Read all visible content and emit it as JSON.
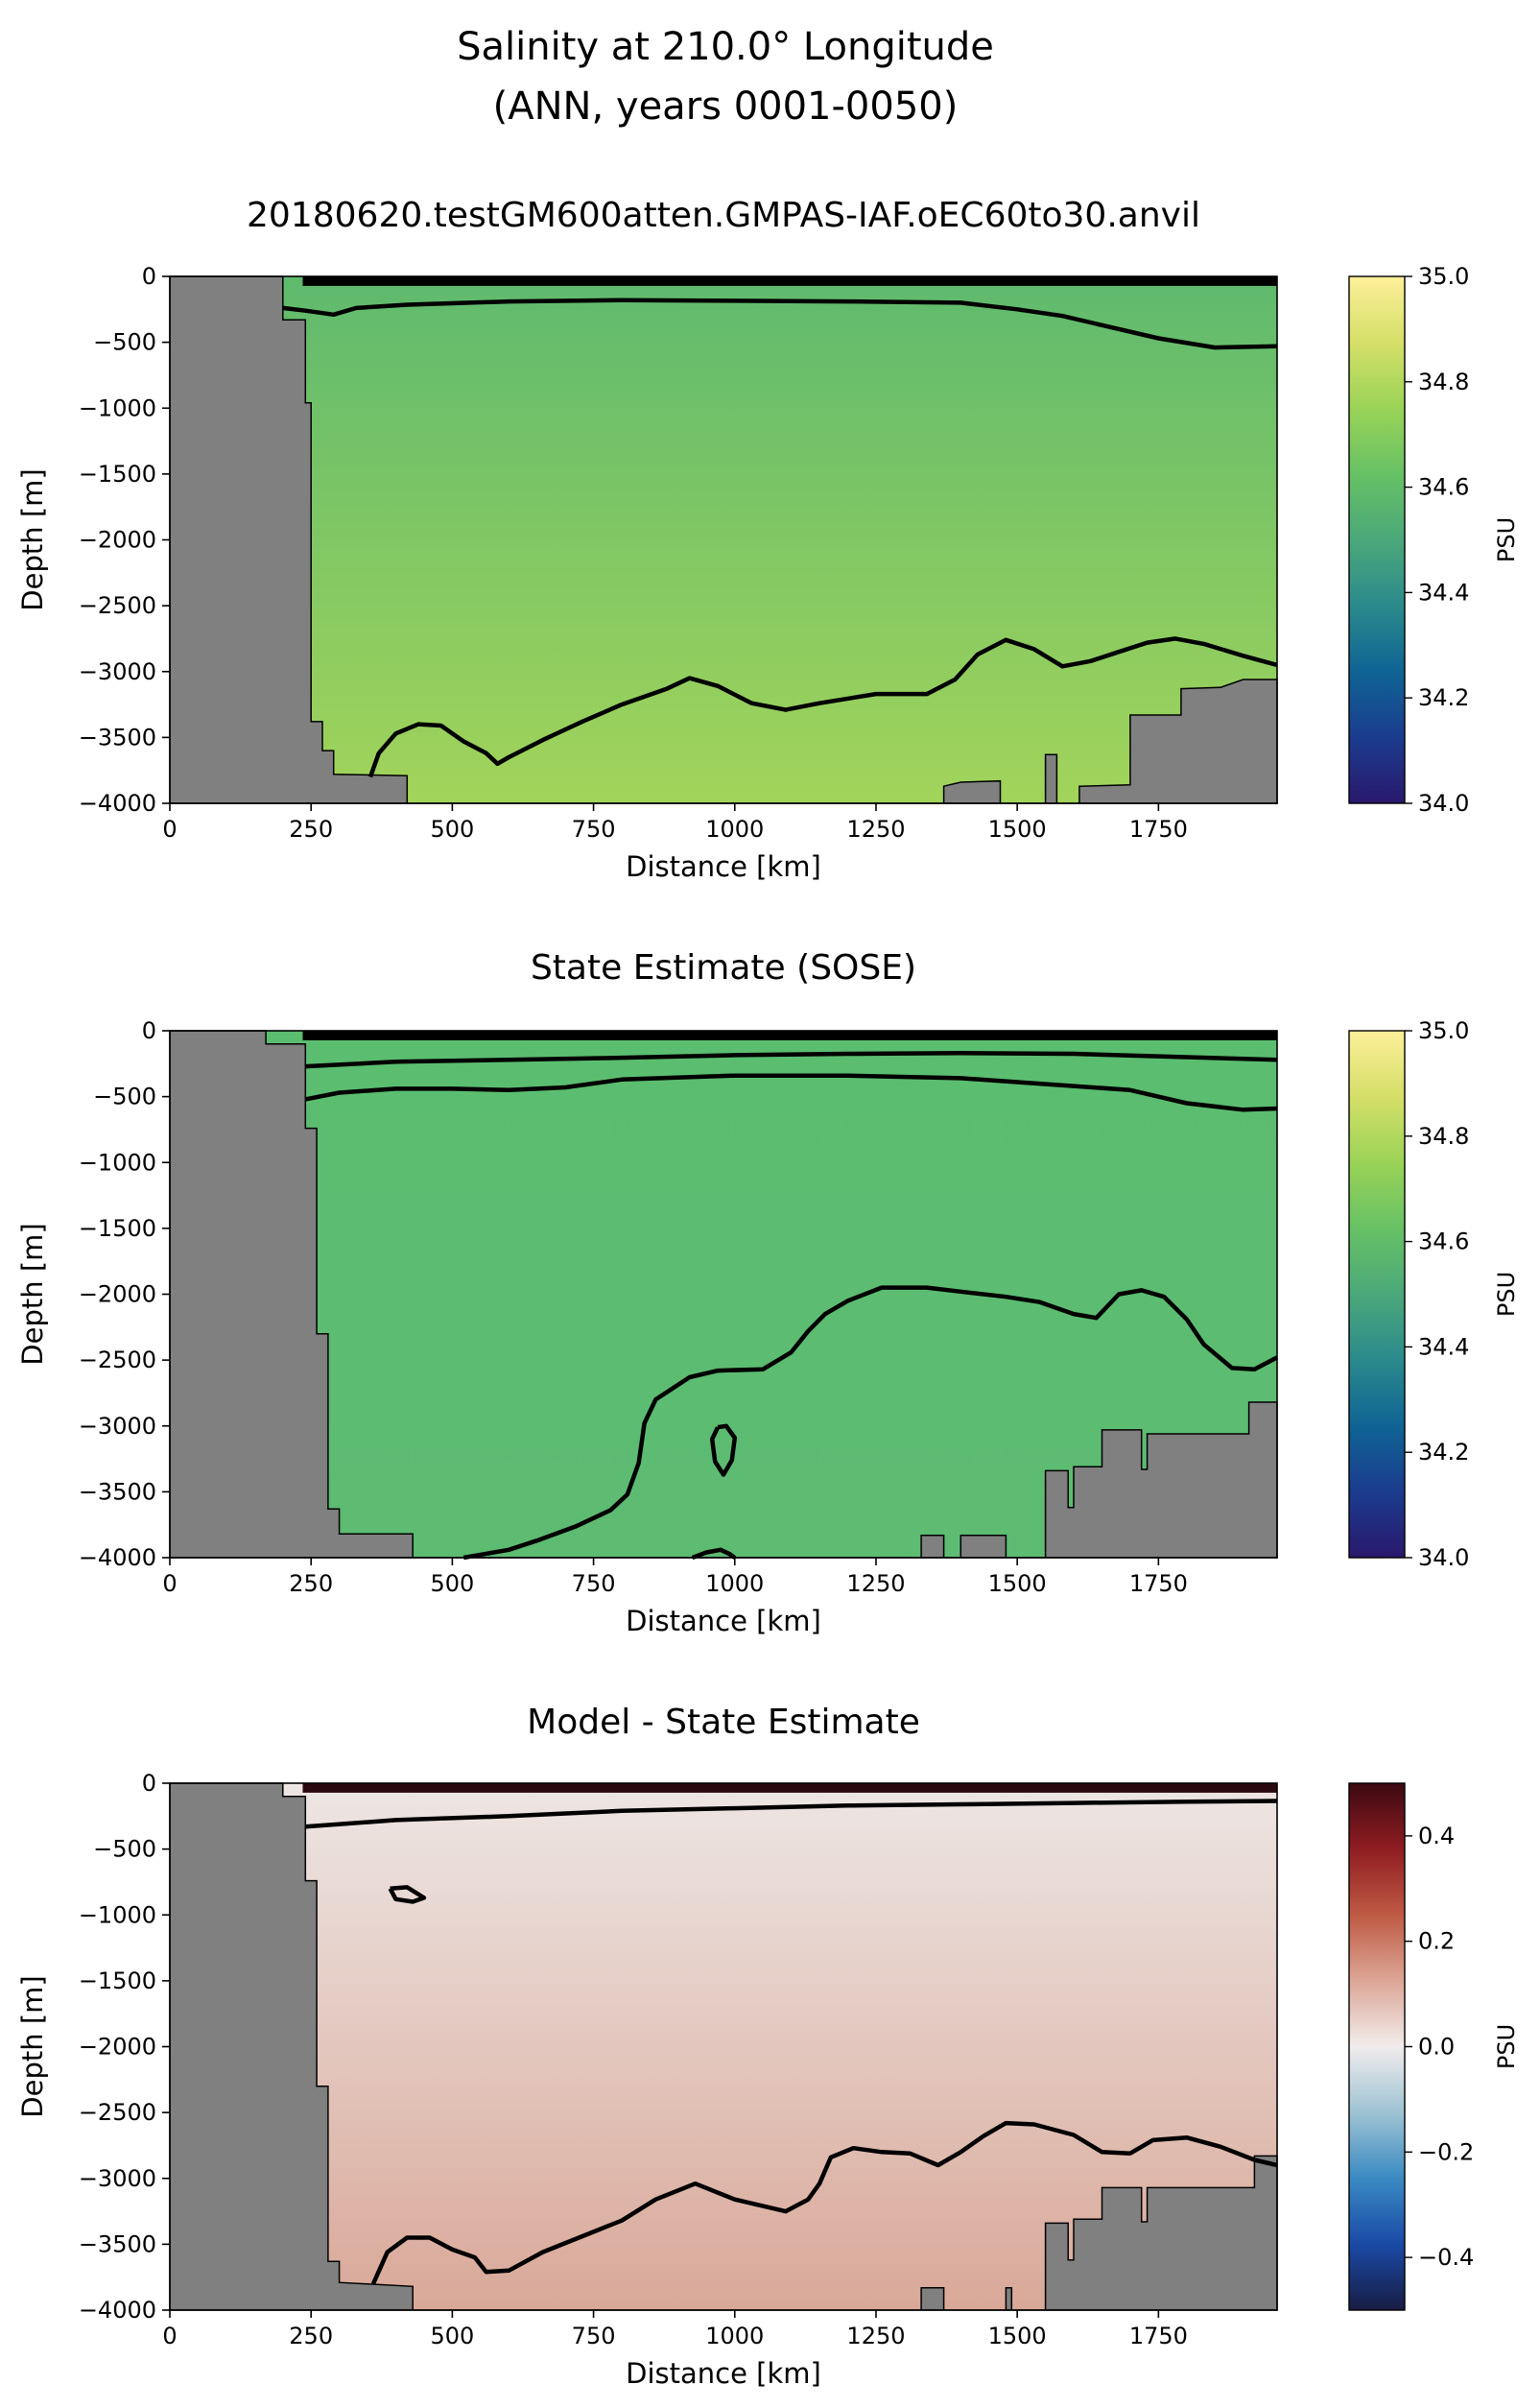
{
  "figure": {
    "title_line1": "Salinity at 210.0° Longitude",
    "title_line2": "(ANN, years 0001-0050)"
  },
  "chart_data": [
    {
      "type": "heatmap",
      "id": "model",
      "title": "20180620.testGM600atten.GMPAS-IAF.oEC60to30.anvil",
      "xlabel": "Distance [km]",
      "ylabel": "Depth [m]",
      "xlim": [
        0,
        1960
      ],
      "ylim": [
        -4000,
        0
      ],
      "xticks": [
        0,
        250,
        500,
        750,
        1000,
        1250,
        1500,
        1750
      ],
      "yticks": [
        0,
        -500,
        -1000,
        -1500,
        -2000,
        -2500,
        -3000,
        -3500,
        -4000
      ],
      "colorbar": {
        "label": "PSU",
        "range": [
          34.0,
          35.0
        ],
        "ticks": [
          35.0,
          34.8,
          34.6,
          34.4,
          34.2,
          34.0
        ],
        "colormap": "haline"
      },
      "field_colors": {
        "top": "#5fba6e",
        "bottom": "#a2d45a",
        "surface": "#000000"
      },
      "bathymetry": [
        [
          0,
          0
        ],
        [
          200,
          0
        ],
        [
          200,
          -330
        ],
        [
          240,
          -330
        ],
        [
          240,
          -960
        ],
        [
          250,
          -960
        ],
        [
          250,
          -3380
        ],
        [
          270,
          -3380
        ],
        [
          270,
          -3600
        ],
        [
          290,
          -3600
        ],
        [
          290,
          -3780
        ],
        [
          420,
          -3790
        ],
        [
          420,
          -4000
        ],
        [
          1370,
          -4000
        ],
        [
          1370,
          -3870
        ],
        [
          1400,
          -3840
        ],
        [
          1470,
          -3830
        ],
        [
          1470,
          -4000
        ],
        [
          1550,
          -4000
        ],
        [
          1550,
          -3630
        ],
        [
          1570,
          -3630
        ],
        [
          1570,
          -4000
        ],
        [
          1610,
          -4000
        ],
        [
          1610,
          -3870
        ],
        [
          1700,
          -3860
        ],
        [
          1700,
          -3330
        ],
        [
          1790,
          -3330
        ],
        [
          1790,
          -3130
        ],
        [
          1860,
          -3120
        ],
        [
          1900,
          -3060
        ],
        [
          1960,
          -3060
        ],
        [
          1960,
          -4000
        ],
        [
          0,
          -4000
        ]
      ],
      "contours": [
        [
          [
            200,
            -240
          ],
          [
            240,
            -260
          ],
          [
            290,
            -290
          ],
          [
            330,
            -240
          ],
          [
            420,
            -215
          ],
          [
            600,
            -190
          ],
          [
            800,
            -180
          ],
          [
            1000,
            -185
          ],
          [
            1200,
            -190
          ],
          [
            1400,
            -200
          ],
          [
            1500,
            -250
          ],
          [
            1580,
            -300
          ],
          [
            1650,
            -370
          ],
          [
            1750,
            -470
          ],
          [
            1850,
            -540
          ],
          [
            1960,
            -530
          ]
        ],
        [
          [
            355,
            -3800
          ],
          [
            370,
            -3620
          ],
          [
            400,
            -3470
          ],
          [
            440,
            -3400
          ],
          [
            480,
            -3410
          ],
          [
            520,
            -3530
          ],
          [
            560,
            -3620
          ],
          [
            580,
            -3700
          ],
          [
            600,
            -3650
          ],
          [
            660,
            -3520
          ],
          [
            730,
            -3380
          ],
          [
            800,
            -3250
          ],
          [
            880,
            -3130
          ],
          [
            920,
            -3050
          ],
          [
            970,
            -3110
          ],
          [
            1030,
            -3240
          ],
          [
            1090,
            -3290
          ],
          [
            1150,
            -3240
          ],
          [
            1250,
            -3170
          ],
          [
            1340,
            -3170
          ],
          [
            1390,
            -3060
          ],
          [
            1430,
            -2870
          ],
          [
            1480,
            -2760
          ],
          [
            1530,
            -2830
          ],
          [
            1580,
            -2960
          ],
          [
            1630,
            -2920
          ],
          [
            1680,
            -2850
          ],
          [
            1730,
            -2780
          ],
          [
            1780,
            -2750
          ],
          [
            1830,
            -2790
          ],
          [
            1900,
            -2880
          ],
          [
            1960,
            -2950
          ]
        ]
      ]
    },
    {
      "type": "heatmap",
      "id": "sose",
      "title": "State Estimate (SOSE)",
      "xlabel": "Distance [km]",
      "ylabel": "Depth [m]",
      "xlim": [
        0,
        1960
      ],
      "ylim": [
        -4000,
        0
      ],
      "xticks": [
        0,
        250,
        500,
        750,
        1000,
        1250,
        1500,
        1750
      ],
      "yticks": [
        0,
        -500,
        -1000,
        -1500,
        -2000,
        -2500,
        -3000,
        -3500,
        -4000
      ],
      "colorbar": {
        "label": "PSU",
        "range": [
          34.0,
          35.0
        ],
        "ticks": [
          35.0,
          34.8,
          34.6,
          34.4,
          34.2,
          34.0
        ],
        "colormap": "haline"
      },
      "field_colors": {
        "top": "#5bbd70",
        "bottom": "#5dbb72",
        "surface": "#000000"
      },
      "bathymetry": [
        [
          0,
          0
        ],
        [
          170,
          0
        ],
        [
          170,
          -100
        ],
        [
          240,
          -100
        ],
        [
          240,
          -740
        ],
        [
          260,
          -740
        ],
        [
          260,
          -2300
        ],
        [
          280,
          -2300
        ],
        [
          280,
          -3630
        ],
        [
          300,
          -3630
        ],
        [
          300,
          -3820
        ],
        [
          430,
          -3820
        ],
        [
          430,
          -4000
        ],
        [
          1330,
          -4000
        ],
        [
          1330,
          -3830
        ],
        [
          1370,
          -3830
        ],
        [
          1370,
          -4000
        ],
        [
          1400,
          -4000
        ],
        [
          1400,
          -3830
        ],
        [
          1480,
          -3830
        ],
        [
          1480,
          -4000
        ],
        [
          1550,
          -4000
        ],
        [
          1550,
          -3340
        ],
        [
          1590,
          -3340
        ],
        [
          1590,
          -3620
        ],
        [
          1600,
          -3620
        ],
        [
          1600,
          -3310
        ],
        [
          1650,
          -3310
        ],
        [
          1650,
          -3030
        ],
        [
          1720,
          -3030
        ],
        [
          1720,
          -3330
        ],
        [
          1730,
          -3330
        ],
        [
          1730,
          -3060
        ],
        [
          1910,
          -3060
        ],
        [
          1910,
          -2820
        ],
        [
          1960,
          -2820
        ],
        [
          1960,
          -4000
        ],
        [
          0,
          -4000
        ]
      ],
      "contours": [
        [
          [
            240,
            -270
          ],
          [
            400,
            -235
          ],
          [
            600,
            -220
          ],
          [
            800,
            -205
          ],
          [
            1000,
            -185
          ],
          [
            1200,
            -175
          ],
          [
            1400,
            -170
          ],
          [
            1600,
            -175
          ],
          [
            1800,
            -200
          ],
          [
            1960,
            -220
          ]
        ],
        [
          [
            240,
            -520
          ],
          [
            300,
            -470
          ],
          [
            400,
            -440
          ],
          [
            500,
            -440
          ],
          [
            600,
            -450
          ],
          [
            700,
            -430
          ],
          [
            800,
            -370
          ],
          [
            1000,
            -340
          ],
          [
            1200,
            -340
          ],
          [
            1400,
            -360
          ],
          [
            1500,
            -390
          ],
          [
            1600,
            -420
          ],
          [
            1700,
            -450
          ],
          [
            1800,
            -550
          ],
          [
            1900,
            -600
          ],
          [
            1960,
            -590
          ]
        ],
        [
          [
            520,
            -4000
          ],
          [
            600,
            -3940
          ],
          [
            650,
            -3870
          ],
          [
            720,
            -3760
          ],
          [
            780,
            -3640
          ],
          [
            810,
            -3520
          ],
          [
            830,
            -3280
          ],
          [
            840,
            -2980
          ],
          [
            860,
            -2800
          ],
          [
            920,
            -2630
          ],
          [
            970,
            -2580
          ],
          [
            1050,
            -2570
          ],
          [
            1100,
            -2440
          ],
          [
            1130,
            -2280
          ],
          [
            1160,
            -2150
          ],
          [
            1200,
            -2050
          ],
          [
            1260,
            -1950
          ],
          [
            1340,
            -1950
          ],
          [
            1400,
            -1980
          ],
          [
            1480,
            -2020
          ],
          [
            1540,
            -2060
          ],
          [
            1600,
            -2150
          ],
          [
            1640,
            -2180
          ],
          [
            1680,
            -2000
          ],
          [
            1720,
            -1970
          ],
          [
            1760,
            -2020
          ],
          [
            1800,
            -2190
          ],
          [
            1830,
            -2380
          ],
          [
            1880,
            -2560
          ],
          [
            1920,
            -2570
          ],
          [
            1960,
            -2480
          ]
        ],
        [
          [
            970,
            -3010
          ],
          [
            985,
            -3000
          ],
          [
            1000,
            -3090
          ],
          [
            995,
            -3260
          ],
          [
            980,
            -3370
          ],
          [
            965,
            -3270
          ],
          [
            960,
            -3100
          ],
          [
            970,
            -3010
          ]
        ],
        [
          [
            925,
            -4000
          ],
          [
            950,
            -3960
          ],
          [
            975,
            -3940
          ],
          [
            990,
            -3970
          ],
          [
            1000,
            -4000
          ]
        ]
      ]
    },
    {
      "type": "heatmap",
      "id": "difference",
      "title": "Model - State Estimate",
      "xlabel": "Distance [km]",
      "ylabel": "Depth [m]",
      "xlim": [
        0,
        1960
      ],
      "ylim": [
        -4000,
        0
      ],
      "xticks": [
        0,
        250,
        500,
        750,
        1000,
        1250,
        1500,
        1750
      ],
      "yticks": [
        0,
        -500,
        -1000,
        -1500,
        -2000,
        -2500,
        -3000,
        -3500,
        -4000
      ],
      "colorbar": {
        "label": "PSU",
        "range": [
          -0.5,
          0.5
        ],
        "ticks": [
          0.4,
          0.2,
          0.0,
          -0.2,
          -0.4
        ],
        "tick_labels": [
          "0.4",
          "0.2",
          "0.0",
          "−0.2",
          "−0.4"
        ],
        "colormap": "balance"
      },
      "field_colors": {
        "top": "#ede6e4",
        "bottom": "#d9a898",
        "surface": "#2a0a10"
      },
      "bathymetry": [
        [
          0,
          0
        ],
        [
          200,
          0
        ],
        [
          200,
          -100
        ],
        [
          240,
          -100
        ],
        [
          240,
          -740
        ],
        [
          260,
          -740
        ],
        [
          260,
          -2300
        ],
        [
          280,
          -2300
        ],
        [
          280,
          -3630
        ],
        [
          300,
          -3630
        ],
        [
          300,
          -3790
        ],
        [
          430,
          -3820
        ],
        [
          430,
          -4000
        ],
        [
          1330,
          -4000
        ],
        [
          1330,
          -3830
        ],
        [
          1370,
          -3830
        ],
        [
          1370,
          -4000
        ],
        [
          1480,
          -4000
        ],
        [
          1480,
          -3830
        ],
        [
          1490,
          -3830
        ],
        [
          1490,
          -4000
        ],
        [
          1550,
          -4000
        ],
        [
          1550,
          -3340
        ],
        [
          1590,
          -3340
        ],
        [
          1590,
          -3620
        ],
        [
          1600,
          -3620
        ],
        [
          1600,
          -3310
        ],
        [
          1650,
          -3310
        ],
        [
          1650,
          -3070
        ],
        [
          1720,
          -3070
        ],
        [
          1720,
          -3330
        ],
        [
          1730,
          -3330
        ],
        [
          1730,
          -3070
        ],
        [
          1920,
          -3070
        ],
        [
          1920,
          -2830
        ],
        [
          1960,
          -2830
        ],
        [
          1960,
          -4000
        ],
        [
          0,
          -4000
        ]
      ],
      "contours": [
        [
          [
            240,
            -330
          ],
          [
            400,
            -280
          ],
          [
            600,
            -250
          ],
          [
            800,
            -210
          ],
          [
            1000,
            -190
          ],
          [
            1200,
            -170
          ],
          [
            1400,
            -160
          ],
          [
            1600,
            -150
          ],
          [
            1800,
            -140
          ],
          [
            1960,
            -135
          ]
        ],
        [
          [
            390,
            -800
          ],
          [
            420,
            -790
          ],
          [
            450,
            -870
          ],
          [
            430,
            -900
          ],
          [
            400,
            -880
          ],
          [
            390,
            -800
          ]
        ],
        [
          [
            360,
            -3800
          ],
          [
            385,
            -3560
          ],
          [
            420,
            -3450
          ],
          [
            460,
            -3450
          ],
          [
            500,
            -3540
          ],
          [
            540,
            -3600
          ],
          [
            560,
            -3710
          ],
          [
            600,
            -3700
          ],
          [
            660,
            -3560
          ],
          [
            730,
            -3440
          ],
          [
            800,
            -3320
          ],
          [
            860,
            -3160
          ],
          [
            930,
            -3040
          ],
          [
            1000,
            -3160
          ],
          [
            1040,
            -3200
          ],
          [
            1090,
            -3250
          ],
          [
            1130,
            -3160
          ],
          [
            1150,
            -3040
          ],
          [
            1170,
            -2840
          ],
          [
            1210,
            -2770
          ],
          [
            1260,
            -2800
          ],
          [
            1310,
            -2810
          ],
          [
            1360,
            -2900
          ],
          [
            1400,
            -2800
          ],
          [
            1440,
            -2680
          ],
          [
            1480,
            -2580
          ],
          [
            1530,
            -2590
          ],
          [
            1600,
            -2670
          ],
          [
            1650,
            -2800
          ],
          [
            1700,
            -2810
          ],
          [
            1740,
            -2710
          ],
          [
            1800,
            -2690
          ],
          [
            1860,
            -2760
          ],
          [
            1920,
            -2860
          ],
          [
            1960,
            -2900
          ]
        ]
      ]
    }
  ]
}
